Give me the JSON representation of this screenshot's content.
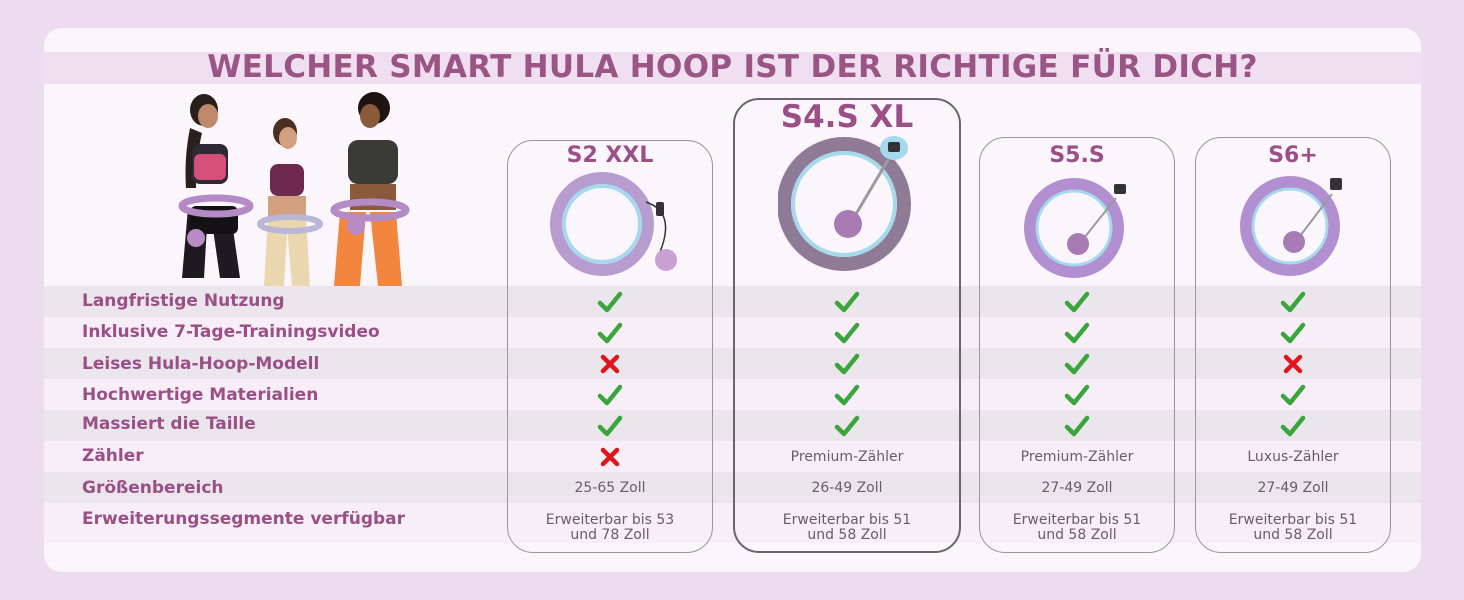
{
  "title": "WELCHER SMART HULA HOOP IST DER RICHTIGE FÜR DICH?",
  "products": [
    {
      "name": "S2 XXL"
    },
    {
      "name": "S4.S XL"
    },
    {
      "name": "S5.S"
    },
    {
      "name": "S6+"
    }
  ],
  "rows": [
    {
      "label": "Langfristige Nutzung",
      "values": [
        "check",
        "check",
        "check",
        "check"
      ]
    },
    {
      "label": "Inklusive 7-Tage-Trainingsvideo",
      "values": [
        "check",
        "check",
        "check",
        "check"
      ]
    },
    {
      "label": "Leises Hula-Hoop-Modell",
      "values": [
        "cross",
        "check",
        "check",
        "cross"
      ]
    },
    {
      "label": "Hochwertige Materialien",
      "values": [
        "check",
        "check",
        "check",
        "check"
      ]
    },
    {
      "label": "Massiert die Taille",
      "values": [
        "check",
        "check",
        "check",
        "check"
      ]
    },
    {
      "label": "Zähler",
      "values": [
        "cross",
        "Premium-Zähler",
        "Premium-Zähler",
        "Luxus-Zähler"
      ]
    },
    {
      "label": "Größenbereich",
      "values": [
        "25-65 Zoll",
        "26-49 Zoll",
        "27-49 Zoll",
        "27-49 Zoll"
      ]
    },
    {
      "label": "Erweiterungssegmente verfügbar",
      "values": [
        [
          "Erweiterbar bis 53",
          "und 78 Zoll"
        ],
        [
          "Erweiterbar bis 51",
          "und 58 Zoll"
        ],
        [
          "Erweiterbar bis 51",
          "und 58 Zoll"
        ],
        [
          "Erweiterbar bis 51",
          "und 58 Zoll"
        ]
      ]
    }
  ],
  "colors": {
    "brand": "#9a4f86",
    "check": "#3aa53a",
    "cross": "#e0161c"
  }
}
